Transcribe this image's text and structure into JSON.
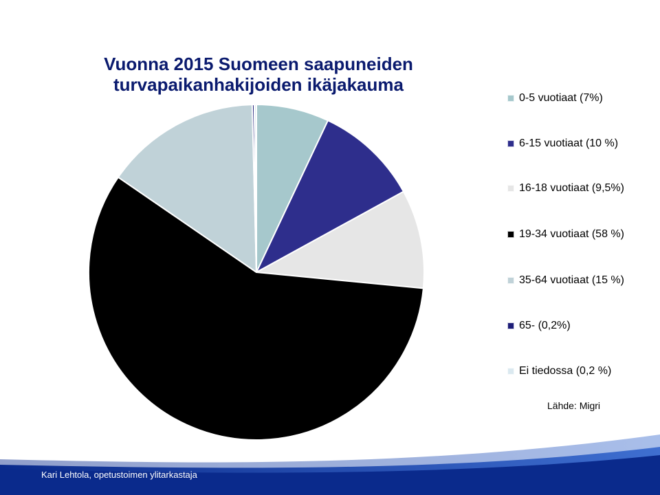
{
  "colors": {
    "background": "#ffffff",
    "footer_band": "#0a2a8c",
    "footer_band_light": "#3f6fd0",
    "title": "#0a1a6e"
  },
  "chart_data": {
    "type": "pie",
    "title": "Vuonna 2015 Suomeen saapuneiden turvapaikanhakijoiden ikäjakauma",
    "legend_position": "right",
    "start_angle": "top",
    "direction": "clockwise",
    "slices": [
      {
        "label": "0-5 vuotiaat (7%)",
        "value": 7,
        "color": "#a6c8cc"
      },
      {
        "label": "6-15 vuotiaat (10 %)",
        "value": 10,
        "color": "#2e2e8c"
      },
      {
        "label": "16-18 vuotiaat (9,5%)",
        "value": 9.5,
        "color": "#e6e6e6"
      },
      {
        "label": "19-34 vuotiaat (58 %)",
        "value": 58,
        "color": "#000000"
      },
      {
        "label": "35-64 vuotiaat (15 %)",
        "value": 15,
        "color": "#c0d2d8"
      },
      {
        "label": "65-  (0,2%)",
        "value": 0.2,
        "color": "#1e1e78"
      },
      {
        "label": "Ei tiedossa (0,2 %)",
        "value": 0.2,
        "color": "#dbe9f0"
      }
    ]
  },
  "source_label": "Lähde: Migri",
  "footer_text": "Kari Lehtola, opetustoimen ylitarkastaja"
}
